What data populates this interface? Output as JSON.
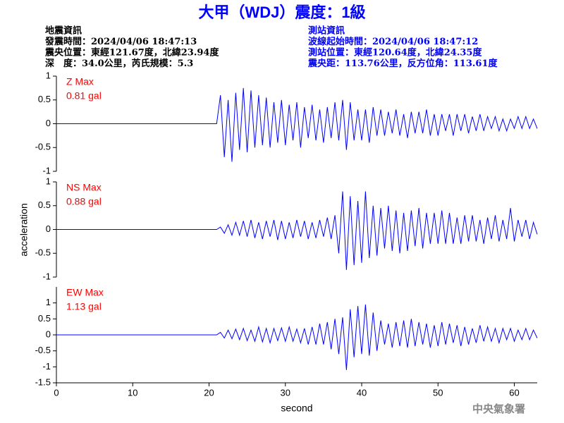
{
  "title": "大甲（WDJ）震度：1級",
  "info_left": [
    "地震資訊",
    "發震時間：2024/04/06 18:47:13",
    "震央位置：東經121.67度，北緯23.94度",
    "深　度：34.0公里，芮氏規模：5.3"
  ],
  "info_right": [
    "測站資訊",
    "波線起始時間：2024/04/06 18:47:12",
    "測站位置：東經120.64度，北緯24.35度",
    "震央距：113.76公里，反方位角：113.61度"
  ],
  "ylabel": "acceleration",
  "footer": "中央氣象署",
  "chart_data": [
    {
      "type": "line",
      "annotations": [
        "Z Max",
        "0.81 gal"
      ],
      "xlim": [
        0,
        63
      ],
      "ylim": [
        -1,
        1
      ],
      "yticks": [
        -1,
        -0.5,
        0,
        0.5,
        1
      ],
      "x": [
        0,
        5,
        10,
        15,
        20,
        21,
        21.5,
        22,
        22.5,
        23,
        23.5,
        24,
        24.5,
        25,
        25.5,
        26,
        26.5,
        27,
        27.5,
        28,
        28.5,
        29,
        29.5,
        30,
        30.5,
        31,
        31.5,
        32,
        32.5,
        33,
        33.5,
        34,
        34.5,
        35,
        35.5,
        36,
        36.5,
        37,
        37.5,
        38,
        38.5,
        39,
        39.5,
        40,
        40.5,
        41,
        41.5,
        42,
        42.5,
        43,
        43.5,
        44,
        44.5,
        45,
        45.5,
        46,
        46.5,
        47,
        47.5,
        48,
        48.5,
        49,
        49.5,
        50,
        50.5,
        51,
        51.5,
        52,
        52.5,
        53,
        53.5,
        54,
        54.5,
        55,
        55.5,
        56,
        56.5,
        57,
        57.5,
        58,
        58.5,
        59,
        59.5,
        60,
        60.5,
        61,
        61.5,
        62,
        62.5,
        63
      ],
      "series": [
        {
          "color": "#0000ff",
          "values": [
            0,
            0,
            0,
            0,
            0,
            0,
            0.6,
            -0.7,
            0.5,
            -0.8,
            0.65,
            -0.55,
            0.75,
            -0.6,
            0.7,
            -0.5,
            0.6,
            -0.45,
            0.55,
            -0.5,
            0.45,
            -0.4,
            0.5,
            -0.45,
            0.4,
            -0.35,
            0.45,
            -0.5,
            0.35,
            -0.3,
            0.4,
            -0.35,
            0.3,
            -0.4,
            0.35,
            -0.3,
            0.45,
            -0.35,
            0.5,
            -0.55,
            0.45,
            -0.35,
            0.3,
            -0.35,
            0.3,
            -0.4,
            0.35,
            -0.25,
            0.3,
            -0.25,
            0.25,
            -0.2,
            0.3,
            -0.25,
            0.2,
            -0.3,
            0.25,
            -0.2,
            0.25,
            -0.2,
            0.3,
            -0.25,
            0.2,
            -0.25,
            0.2,
            -0.15,
            0.2,
            -0.25,
            0.2,
            -0.15,
            0.2,
            -0.2,
            0.15,
            -0.15,
            0.2,
            -0.15,
            0.15,
            -0.1,
            0.15,
            -0.15,
            0.1,
            -0.15,
            0.1,
            -0.1,
            0.15,
            -0.1,
            0.15,
            -0.1,
            0.1,
            -0.1
          ]
        }
      ]
    },
    {
      "type": "line",
      "annotations": [
        "NS Max",
        "0.88 gal"
      ],
      "xlim": [
        0,
        63
      ],
      "ylim": [
        -1,
        1
      ],
      "yticks": [
        -1,
        -0.5,
        0,
        0.5,
        1
      ],
      "x": [
        0,
        5,
        10,
        15,
        20,
        21,
        21.5,
        22,
        22.5,
        23,
        23.5,
        24,
        24.5,
        25,
        25.5,
        26,
        26.5,
        27,
        27.5,
        28,
        28.5,
        29,
        29.5,
        30,
        30.5,
        31,
        31.5,
        32,
        32.5,
        33,
        33.5,
        34,
        34.5,
        35,
        35.5,
        36,
        36.5,
        37,
        37.5,
        38,
        38.5,
        39,
        39.5,
        40,
        40.5,
        41,
        41.5,
        42,
        42.5,
        43,
        43.5,
        44,
        44.5,
        45,
        45.5,
        46,
        46.5,
        47,
        47.5,
        48,
        48.5,
        49,
        49.5,
        50,
        50.5,
        51,
        51.5,
        52,
        52.5,
        53,
        53.5,
        54,
        54.5,
        55,
        55.5,
        56,
        56.5,
        57,
        57.5,
        58,
        58.5,
        59,
        59.5,
        60,
        60.5,
        61,
        61.5,
        62,
        62.5,
        63
      ],
      "series": [
        {
          "color": "#0000ff",
          "values": [
            0,
            0,
            0,
            0,
            0,
            0,
            0.05,
            -0.08,
            0.1,
            -0.12,
            0.15,
            -0.12,
            0.18,
            -0.15,
            0.2,
            -0.18,
            0.15,
            -0.2,
            0.18,
            -0.15,
            0.2,
            -0.22,
            0.18,
            -0.2,
            0.15,
            -0.18,
            0.2,
            -0.15,
            0.18,
            -0.2,
            0.15,
            -0.18,
            0.2,
            -0.15,
            0.25,
            -0.2,
            0.3,
            -0.5,
            0.8,
            -0.85,
            0.7,
            -0.75,
            0.6,
            -0.7,
            0.8,
            -0.6,
            0.5,
            -0.55,
            0.45,
            -0.4,
            0.5,
            -0.45,
            0.4,
            -0.5,
            0.35,
            -0.45,
            0.4,
            -0.35,
            0.45,
            -0.4,
            0.35,
            -0.3,
            0.35,
            -0.3,
            0.4,
            -0.3,
            0.35,
            -0.3,
            0.25,
            -0.3,
            0.3,
            -0.25,
            0.3,
            -0.25,
            0.2,
            -0.3,
            0.25,
            -0.2,
            0.3,
            -0.25,
            0.2,
            -0.2,
            0.45,
            -0.25,
            0.2,
            -0.15,
            0.2,
            -0.2,
            0.15,
            -0.1
          ]
        }
      ]
    },
    {
      "type": "line",
      "annotations": [
        "EW Max",
        "1.13 gal"
      ],
      "xlim": [
        0,
        63
      ],
      "ylim": [
        -1.5,
        1.5
      ],
      "yticks": [
        -1.5,
        -1,
        -0.5,
        0,
        0.5,
        1
      ],
      "xticks": [
        0,
        10,
        20,
        30,
        40,
        50,
        60
      ],
      "xlabel": "second",
      "x": [
        0,
        5,
        10,
        15,
        20,
        21,
        21.5,
        22,
        22.5,
        23,
        23.5,
        24,
        24.5,
        25,
        25.5,
        26,
        26.5,
        27,
        27.5,
        28,
        28.5,
        29,
        29.5,
        30,
        30.5,
        31,
        31.5,
        32,
        32.5,
        33,
        33.5,
        34,
        34.5,
        35,
        35.5,
        36,
        36.5,
        37,
        37.5,
        38,
        38.5,
        39,
        39.5,
        40,
        40.5,
        41,
        41.5,
        42,
        42.5,
        43,
        43.5,
        44,
        44.5,
        45,
        45.5,
        46,
        46.5,
        47,
        47.5,
        48,
        48.5,
        49,
        49.5,
        50,
        50.5,
        51,
        51.5,
        52,
        52.5,
        53,
        53.5,
        54,
        54.5,
        55,
        55.5,
        56,
        56.5,
        57,
        57.5,
        58,
        58.5,
        59,
        59.5,
        60,
        60.5,
        61,
        61.5,
        62,
        62.5,
        63
      ],
      "series": [
        {
          "color": "#0000ff",
          "values": [
            0,
            0,
            0,
            0,
            0,
            0,
            0.08,
            -0.1,
            0.15,
            -0.12,
            0.18,
            -0.15,
            0.2,
            -0.18,
            0.15,
            -0.2,
            0.25,
            -0.22,
            0.2,
            -0.25,
            0.2,
            -0.18,
            0.22,
            -0.2,
            0.25,
            -0.2,
            0.18,
            -0.25,
            0.2,
            -0.3,
            0.25,
            -0.3,
            0.35,
            -0.3,
            0.4,
            -0.45,
            0.5,
            -0.6,
            0.55,
            -1.1,
            0.8,
            -0.7,
            0.9,
            -0.6,
            0.95,
            -0.65,
            0.7,
            -0.5,
            0.45,
            -0.3,
            0.35,
            -0.4,
            0.4,
            -0.35,
            0.45,
            -0.4,
            0.5,
            -0.35,
            0.4,
            -0.3,
            0.35,
            -0.4,
            0.3,
            -0.35,
            0.4,
            -0.3,
            0.35,
            -0.25,
            0.3,
            -0.35,
            0.25,
            -0.3,
            0.2,
            -0.25,
            0.3,
            -0.2,
            0.25,
            -0.2,
            0.2,
            -0.25,
            0.2,
            -0.15,
            0.2,
            -0.2,
            0.15,
            -0.15,
            0.2,
            -0.15,
            0.15,
            -0.1
          ]
        }
      ]
    }
  ]
}
